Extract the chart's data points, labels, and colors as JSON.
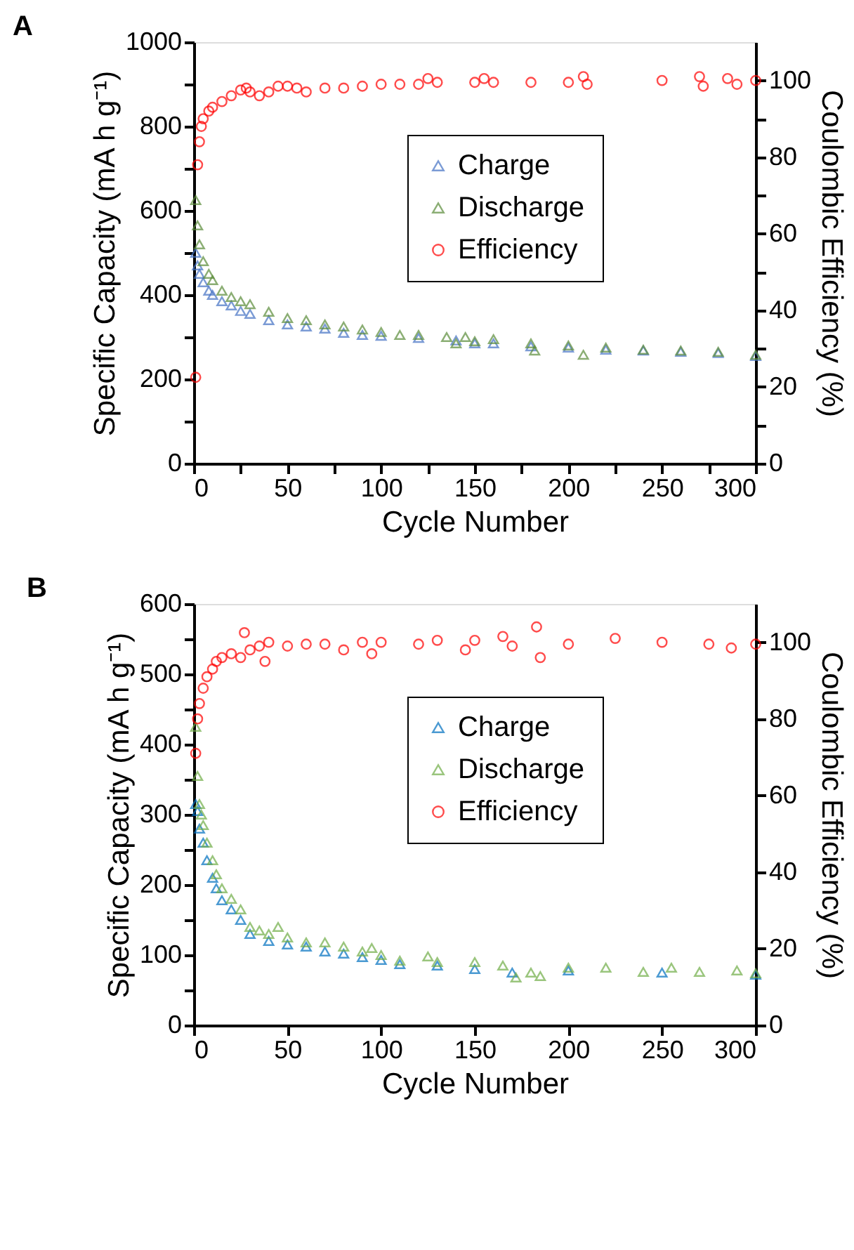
{
  "chart_data": [
    {
      "type": "scatter",
      "title": "A",
      "xlabel": "Cycle Number",
      "ylabel": "Specific Capacity (mA h g⁻¹)",
      "y2label": "Coulombic Efficiency (%)",
      "legend": "center",
      "grid": false,
      "xlim": [
        0,
        300
      ],
      "xticks": [
        0,
        {
          "value": 25,
          "label": null
        },
        50,
        {
          "value": 75,
          "label": null
        },
        100,
        {
          "value": 125,
          "label": null
        },
        150,
        {
          "value": 175,
          "label": null
        },
        200,
        {
          "value": 225,
          "label": null
        },
        250,
        {
          "value": 275,
          "label": null
        },
        300
      ],
      "ylim": [
        0,
        1000
      ],
      "yticks": [
        0,
        {
          "value": 100,
          "label": null
        },
        200,
        {
          "value": 300,
          "label": null
        },
        400,
        {
          "value": 500,
          "label": null
        },
        600,
        {
          "value": 700,
          "label": null
        },
        800,
        {
          "value": 900,
          "label": null
        },
        1000
      ],
      "y2lim": [
        0,
        110
      ],
      "y2ticks": [
        0,
        {
          "value": 10,
          "label": null
        },
        20,
        {
          "value": 30,
          "label": null
        },
        40,
        {
          "value": 50,
          "label": null
        },
        60,
        {
          "value": 70,
          "label": null
        },
        80,
        {
          "value": 90,
          "label": null
        },
        100
      ],
      "series": [
        {
          "name": "Charge",
          "color": "#4472c4",
          "marker": "triangle",
          "x": [
            1,
            2,
            3,
            5,
            8,
            10,
            15,
            20,
            25,
            30,
            40,
            50,
            60,
            70,
            80,
            90,
            100,
            120,
            140,
            150,
            160,
            180,
            200,
            220,
            240,
            260,
            280,
            300
          ],
          "values": [
            500,
            470,
            450,
            430,
            410,
            400,
            385,
            375,
            362,
            355,
            340,
            330,
            325,
            320,
            310,
            305,
            303,
            298,
            292,
            285,
            285,
            278,
            275,
            270,
            268,
            265,
            262,
            255
          ]
        },
        {
          "name": "Discharge",
          "color": "#5b8c3a",
          "marker": "triangle",
          "x": [
            1,
            2,
            3,
            5,
            8,
            10,
            15,
            20,
            25,
            30,
            40,
            50,
            60,
            70,
            80,
            90,
            100,
            110,
            120,
            135,
            140,
            145,
            150,
            160,
            180,
            182,
            200,
            208,
            220,
            240,
            260,
            280,
            300
          ],
          "values": [
            625,
            565,
            520,
            480,
            450,
            435,
            410,
            395,
            385,
            378,
            360,
            345,
            340,
            330,
            325,
            318,
            312,
            305,
            305,
            300,
            285,
            300,
            290,
            295,
            285,
            268,
            280,
            258,
            275,
            270,
            268,
            265,
            258
          ]
        },
        {
          "name": "Efficiency",
          "color": "#ff0000",
          "marker": "circle",
          "axis": "y2",
          "x": [
            1,
            2,
            3,
            4,
            5,
            8,
            10,
            15,
            20,
            25,
            28,
            30,
            35,
            40,
            45,
            50,
            55,
            60,
            70,
            80,
            90,
            100,
            110,
            120,
            125,
            130,
            150,
            155,
            160,
            180,
            200,
            208,
            210,
            250,
            270,
            272,
            285,
            290,
            300
          ],
          "values": [
            22.5,
            78,
            84,
            88,
            90,
            92,
            93,
            94.5,
            96,
            97.5,
            98,
            97,
            96,
            97,
            98.5,
            98.5,
            98,
            97,
            98,
            98,
            98.5,
            99,
            99,
            99,
            100.5,
            99.5,
            99.5,
            100.5,
            99.5,
            99.5,
            99.5,
            101,
            99,
            100,
            101,
            98.5,
            100.5,
            99,
            100
          ]
        }
      ]
    },
    {
      "type": "scatter",
      "title": "B",
      "xlabel": "Cycle Number",
      "ylabel": "Specific Capacity (mA h g⁻¹)",
      "y2label": "Coulombic Efficiency (%)",
      "legend": "center",
      "grid": false,
      "xlim": [
        0,
        300
      ],
      "xticks": [
        0,
        50,
        100,
        150,
        200,
        250,
        300
      ],
      "ylim": [
        0,
        600
      ],
      "yticks": [
        0,
        {
          "value": 50,
          "label": null
        },
        100,
        {
          "value": 150,
          "label": null
        },
        200,
        {
          "value": 250,
          "label": null
        },
        300,
        {
          "value": 350,
          "label": null
        },
        400,
        {
          "value": 450,
          "label": null
        },
        500,
        {
          "value": 550,
          "label": null
        },
        600
      ],
      "y2lim": [
        0,
        110
      ],
      "y2ticks": [
        0,
        20,
        40,
        60,
        80,
        100
      ],
      "series": [
        {
          "name": "Charge",
          "color": "#0070c0",
          "marker": "triangle",
          "x": [
            1,
            2,
            3,
            5,
            7,
            10,
            12,
            15,
            20,
            25,
            30,
            40,
            50,
            60,
            70,
            80,
            90,
            100,
            110,
            130,
            150,
            170,
            200,
            250,
            300
          ],
          "values": [
            315,
            305,
            280,
            260,
            235,
            210,
            195,
            178,
            165,
            150,
            130,
            120,
            115,
            112,
            105,
            102,
            97,
            93,
            87,
            85,
            80,
            75,
            78,
            75,
            72
          ]
        },
        {
          "name": "Discharge",
          "color": "#70ad47",
          "marker": "triangle",
          "x": [
            1,
            2,
            3,
            4,
            5,
            7,
            10,
            12,
            15,
            20,
            25,
            30,
            35,
            40,
            45,
            50,
            60,
            70,
            80,
            90,
            95,
            100,
            110,
            125,
            130,
            150,
            165,
            172,
            180,
            185,
            200,
            220,
            240,
            255,
            270,
            290,
            300
          ],
          "values": [
            425,
            355,
            315,
            300,
            285,
            260,
            235,
            215,
            195,
            180,
            165,
            140,
            135,
            130,
            140,
            125,
            118,
            118,
            112,
            105,
            110,
            100,
            92,
            98,
            90,
            90,
            85,
            68,
            75,
            70,
            82,
            82,
            76,
            82,
            76,
            78,
            74
          ]
        },
        {
          "name": "Efficiency",
          "color": "#ff0000",
          "marker": "circle",
          "axis": "y2",
          "x": [
            1,
            2,
            3,
            5,
            7,
            10,
            12,
            15,
            20,
            25,
            27,
            30,
            35,
            38,
            40,
            50,
            60,
            70,
            80,
            90,
            95,
            100,
            120,
            130,
            145,
            150,
            165,
            170,
            183,
            185,
            200,
            225,
            250,
            275,
            287,
            300
          ],
          "values": [
            71,
            80,
            84,
            88,
            91,
            93,
            95,
            96,
            97,
            96,
            102.5,
            98,
            99,
            95,
            100,
            99,
            99.5,
            99.5,
            98,
            100,
            97,
            100,
            99.5,
            100.5,
            98,
            100.5,
            101.5,
            99,
            104,
            96,
            99.5,
            101,
            100,
            99.5,
            98.5,
            99.5
          ]
        }
      ]
    }
  ]
}
